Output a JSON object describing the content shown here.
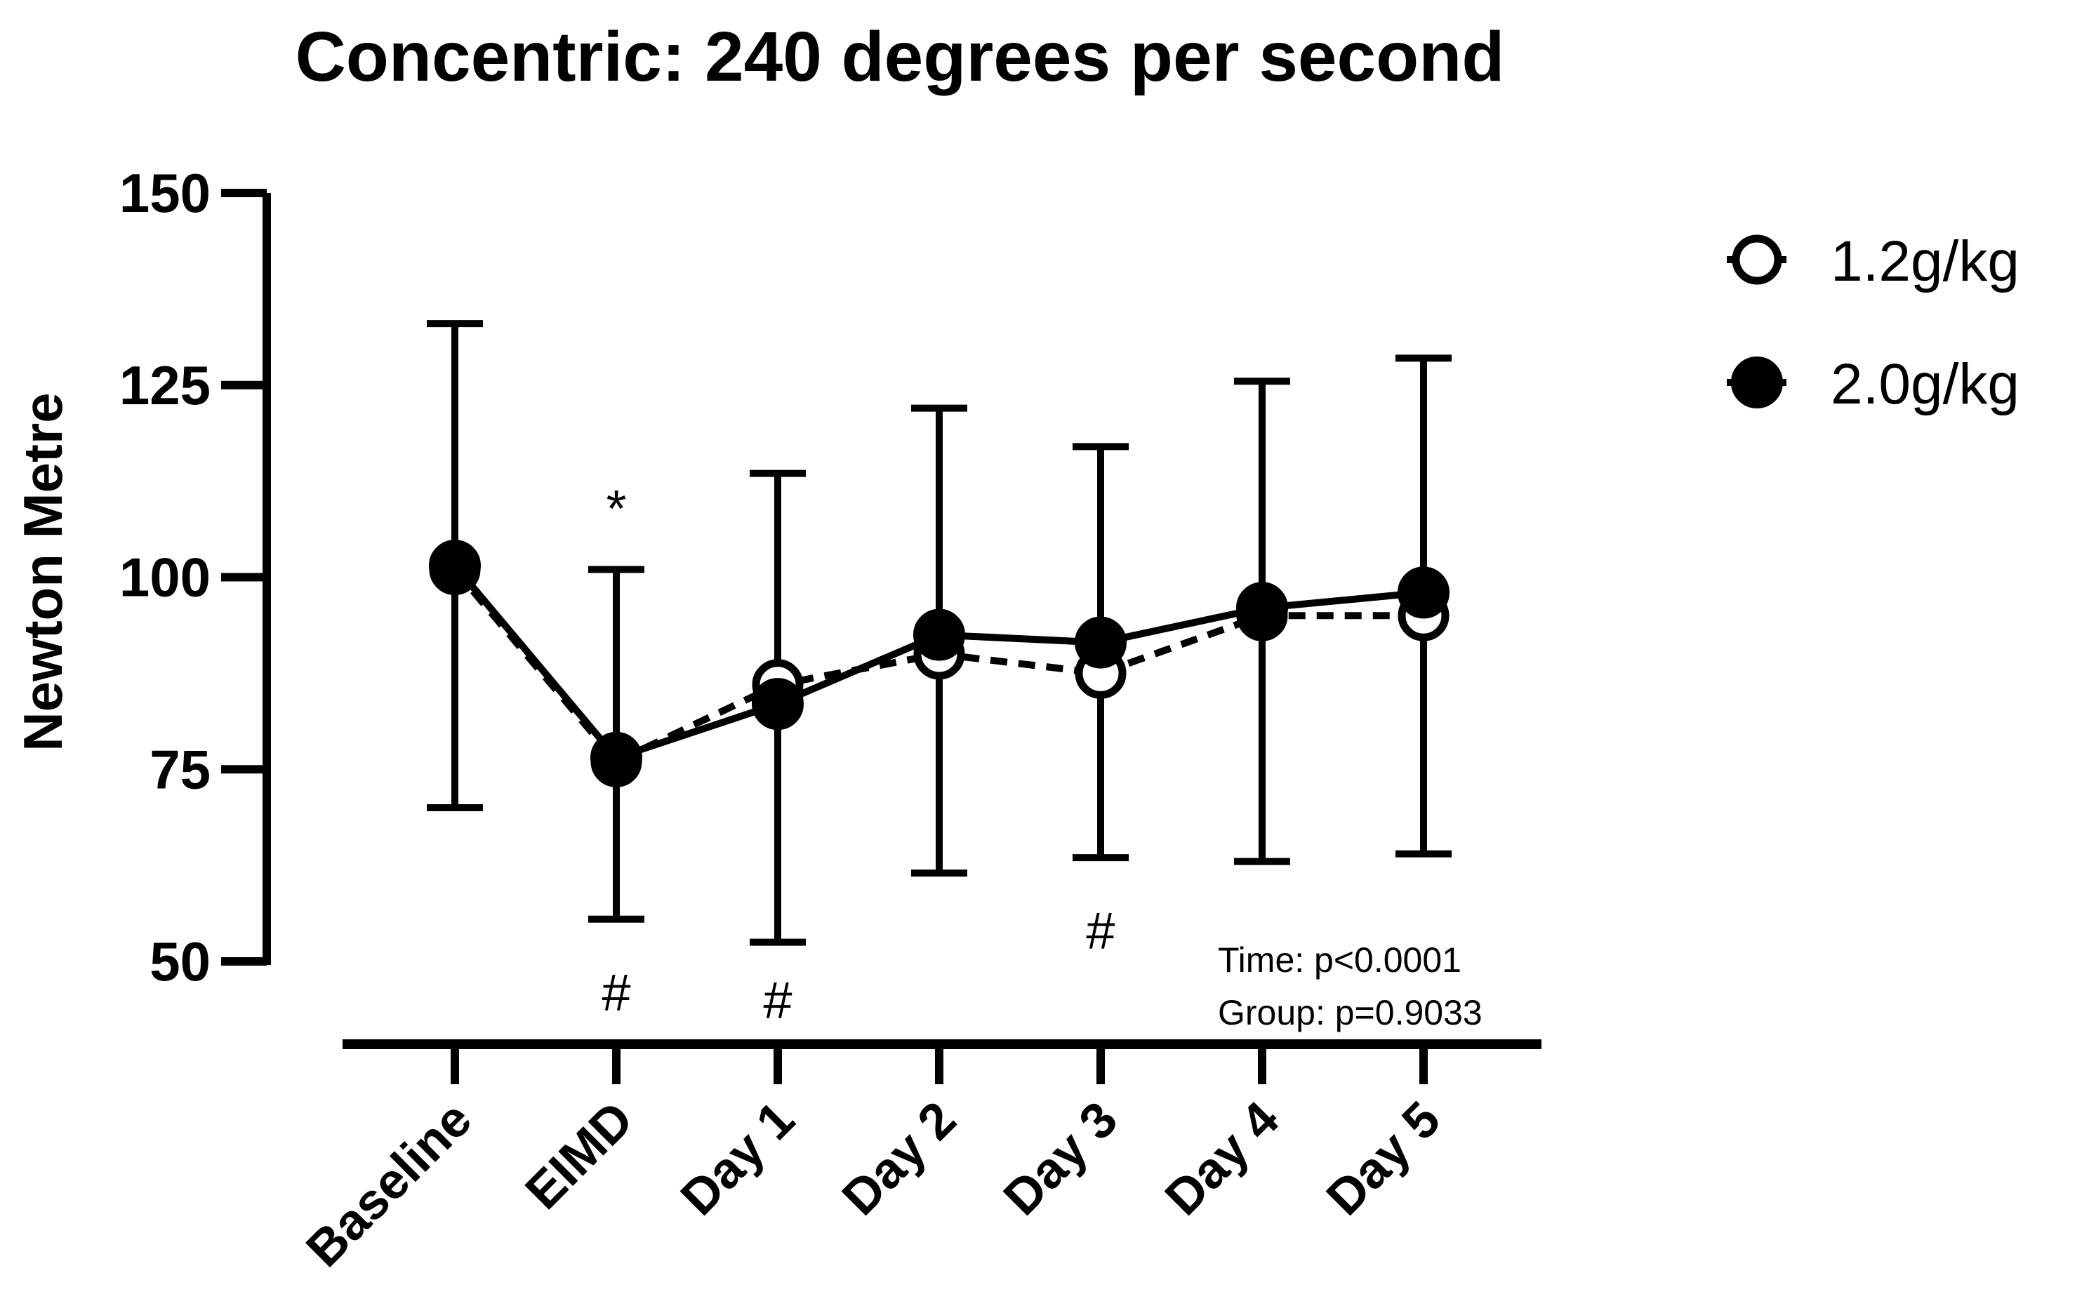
{
  "chart_data": {
    "type": "line",
    "title": "Concentric: 240 degrees per second",
    "xlabel": "",
    "ylabel": "Newton Metre",
    "ylim": [
      50,
      150
    ],
    "yticks": [
      "50",
      "75",
      "100",
      "125",
      "150"
    ],
    "categories": [
      "Baseline",
      "EIMD",
      "Day 1",
      "Day 2",
      "Day 3",
      "Day 4",
      "Day 5"
    ],
    "series": [
      {
        "name": "1.2g/kg",
        "marker": "open-circle",
        "line": "dashed",
        "values": [
          101,
          76,
          86,
          90,
          87.5,
          95,
          95
        ],
        "err_low": [
          70,
          55.5,
          52.5,
          61.5,
          63.5,
          63,
          64
        ],
        "err_high": [
          133,
          101,
          113.5,
          122,
          117,
          125.5,
          128.5
        ]
      },
      {
        "name": "2.0g/kg",
        "marker": "filled-circle",
        "line": "solid",
        "values": [
          101.5,
          76.5,
          83.5,
          92.5,
          91.5,
          96,
          98
        ]
      }
    ],
    "annotations": [
      {
        "category": "EIMD",
        "text": "*",
        "value": 109
      },
      {
        "category": "EIMD",
        "text": "#",
        "value": 46
      },
      {
        "category": "Day 1",
        "text": "#",
        "value": 45
      },
      {
        "category": "Day 3",
        "text": "#",
        "value": 54
      }
    ],
    "stats": [
      "Time: p<0.0001",
      "Group: p=0.9033"
    ],
    "legend_position": "top-right",
    "grid": false
  }
}
